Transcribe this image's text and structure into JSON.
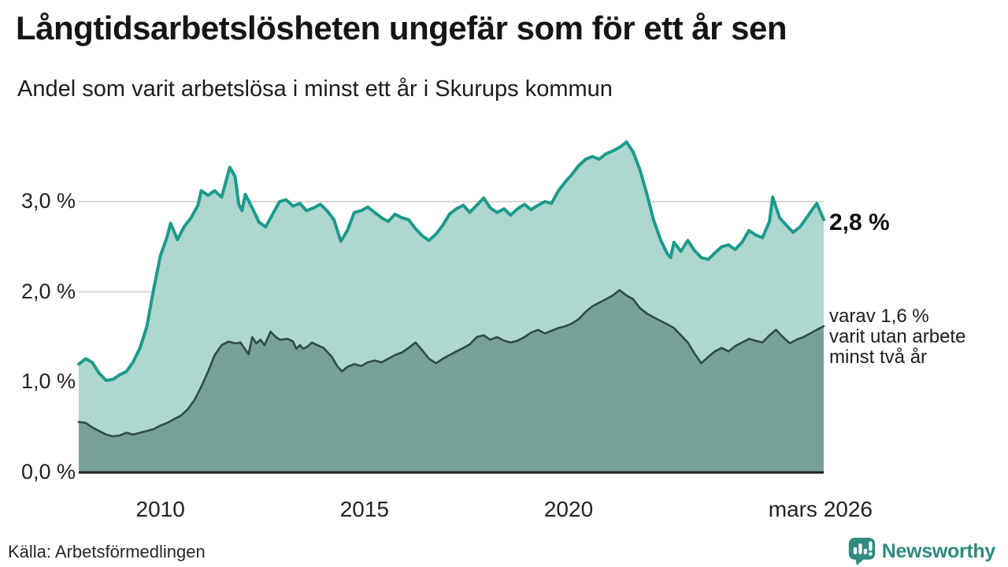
{
  "header": {
    "title": "Långtidsarbetslösheten ungefär som för ett år sen",
    "subtitle": "Andel som varit arbetslösa i minst ett år i Skurups kommun"
  },
  "footer": {
    "source": "Källa: Arbetsförmedlingen",
    "brand": "Newsworthy"
  },
  "colors": {
    "accent_teal": "#1d9a8b",
    "light_fill": "#aed7d0",
    "dark_fill": "#76a098",
    "dark_line": "#2e4b47",
    "grid": "#d8d8d8",
    "baseline": "#1f1f1f",
    "brand_teal": "#2f8a7f"
  },
  "chart_data": {
    "type": "area",
    "title": "Långtidsarbetslösheten ungefär som för ett år sen",
    "subtitle": "Andel som varit arbetslösa i minst ett år i Skurups kommun",
    "xlabel": "",
    "ylabel": "",
    "unit": "%",
    "x_domain": [
      2008.0,
      2026.25
    ],
    "ylim": [
      0,
      3.8
    ],
    "grid": "horizontal",
    "legend": "none",
    "annotations": {
      "latest": "2,8 %",
      "secondary": [
        "varav 1,6 %",
        "varit utan arbete",
        "minst två år"
      ]
    },
    "yticks": [
      {
        "value": 3,
        "label": "3,0 %"
      },
      {
        "value": 2,
        "label": "2,0 %"
      },
      {
        "value": 1,
        "label": "1,0 %"
      },
      {
        "value": 0,
        "label": "0,0 %"
      }
    ],
    "xticks": [
      {
        "t": 2010.0,
        "label": "2010"
      },
      {
        "t": 2015.0,
        "label": "2015"
      },
      {
        "t": 2020.0,
        "label": "2020"
      },
      {
        "t": 2026.17,
        "label": "mars 2026"
      }
    ],
    "series": [
      {
        "name": "Arbetslösa minst ett år",
        "color": "#1d9a8b",
        "fill": "#aed7d0",
        "latest_value": 2.8,
        "points": [
          [
            2008.0,
            1.2
          ],
          [
            2008.17,
            1.26
          ],
          [
            2008.33,
            1.22
          ],
          [
            2008.5,
            1.1
          ],
          [
            2008.67,
            1.02
          ],
          [
            2008.83,
            1.03
          ],
          [
            2009.0,
            1.08
          ],
          [
            2009.17,
            1.12
          ],
          [
            2009.33,
            1.22
          ],
          [
            2009.5,
            1.38
          ],
          [
            2009.67,
            1.62
          ],
          [
            2009.83,
            2.02
          ],
          [
            2010.0,
            2.4
          ],
          [
            2010.17,
            2.62
          ],
          [
            2010.25,
            2.76
          ],
          [
            2010.42,
            2.58
          ],
          [
            2010.58,
            2.72
          ],
          [
            2010.75,
            2.82
          ],
          [
            2010.92,
            2.96
          ],
          [
            2011.0,
            3.12
          ],
          [
            2011.17,
            3.07
          ],
          [
            2011.33,
            3.12
          ],
          [
            2011.5,
            3.05
          ],
          [
            2011.58,
            3.18
          ],
          [
            2011.7,
            3.38
          ],
          [
            2011.83,
            3.28
          ],
          [
            2011.92,
            2.97
          ],
          [
            2012.0,
            2.9
          ],
          [
            2012.08,
            3.08
          ],
          [
            2012.25,
            2.93
          ],
          [
            2012.42,
            2.77
          ],
          [
            2012.58,
            2.72
          ],
          [
            2012.75,
            2.86
          ],
          [
            2012.92,
            3.0
          ],
          [
            2013.08,
            3.02
          ],
          [
            2013.25,
            2.95
          ],
          [
            2013.42,
            2.98
          ],
          [
            2013.58,
            2.9
          ],
          [
            2013.75,
            2.93
          ],
          [
            2013.92,
            2.97
          ],
          [
            2014.08,
            2.9
          ],
          [
            2014.25,
            2.8
          ],
          [
            2014.42,
            2.56
          ],
          [
            2014.58,
            2.68
          ],
          [
            2014.75,
            2.88
          ],
          [
            2014.92,
            2.9
          ],
          [
            2015.08,
            2.94
          ],
          [
            2015.25,
            2.88
          ],
          [
            2015.42,
            2.82
          ],
          [
            2015.58,
            2.78
          ],
          [
            2015.75,
            2.86
          ],
          [
            2015.92,
            2.82
          ],
          [
            2016.08,
            2.8
          ],
          [
            2016.25,
            2.7
          ],
          [
            2016.42,
            2.62
          ],
          [
            2016.58,
            2.57
          ],
          [
            2016.75,
            2.64
          ],
          [
            2016.92,
            2.74
          ],
          [
            2017.08,
            2.86
          ],
          [
            2017.25,
            2.92
          ],
          [
            2017.42,
            2.96
          ],
          [
            2017.58,
            2.88
          ],
          [
            2017.75,
            2.96
          ],
          [
            2017.92,
            3.04
          ],
          [
            2018.08,
            2.93
          ],
          [
            2018.25,
            2.88
          ],
          [
            2018.42,
            2.92
          ],
          [
            2018.58,
            2.85
          ],
          [
            2018.75,
            2.92
          ],
          [
            2018.92,
            2.97
          ],
          [
            2019.08,
            2.91
          ],
          [
            2019.25,
            2.96
          ],
          [
            2019.42,
            3.0
          ],
          [
            2019.58,
            2.98
          ],
          [
            2019.75,
            3.12
          ],
          [
            2019.92,
            3.22
          ],
          [
            2020.08,
            3.3
          ],
          [
            2020.25,
            3.4
          ],
          [
            2020.42,
            3.47
          ],
          [
            2020.58,
            3.5
          ],
          [
            2020.75,
            3.47
          ],
          [
            2020.92,
            3.53
          ],
          [
            2021.08,
            3.56
          ],
          [
            2021.25,
            3.6
          ],
          [
            2021.42,
            3.66
          ],
          [
            2021.58,
            3.55
          ],
          [
            2021.75,
            3.35
          ],
          [
            2021.92,
            3.08
          ],
          [
            2022.08,
            2.8
          ],
          [
            2022.25,
            2.58
          ],
          [
            2022.42,
            2.42
          ],
          [
            2022.5,
            2.38
          ],
          [
            2022.58,
            2.55
          ],
          [
            2022.75,
            2.45
          ],
          [
            2022.92,
            2.57
          ],
          [
            2023.08,
            2.46
          ],
          [
            2023.25,
            2.38
          ],
          [
            2023.42,
            2.36
          ],
          [
            2023.58,
            2.43
          ],
          [
            2023.75,
            2.5
          ],
          [
            2023.92,
            2.52
          ],
          [
            2024.08,
            2.47
          ],
          [
            2024.25,
            2.55
          ],
          [
            2024.42,
            2.68
          ],
          [
            2024.58,
            2.63
          ],
          [
            2024.75,
            2.6
          ],
          [
            2024.92,
            2.78
          ],
          [
            2025.0,
            3.05
          ],
          [
            2025.17,
            2.82
          ],
          [
            2025.33,
            2.74
          ],
          [
            2025.5,
            2.66
          ],
          [
            2025.67,
            2.72
          ],
          [
            2025.83,
            2.82
          ],
          [
            2026.0,
            2.93
          ],
          [
            2026.08,
            2.98
          ],
          [
            2026.25,
            2.8
          ]
        ]
      },
      {
        "name": "Varav utan arbete minst två år",
        "color": "#2e4b47",
        "fill": "#76a098",
        "latest_value": 1.6,
        "points": [
          [
            2008.0,
            0.56
          ],
          [
            2008.17,
            0.55
          ],
          [
            2008.33,
            0.5
          ],
          [
            2008.5,
            0.46
          ],
          [
            2008.67,
            0.42
          ],
          [
            2008.83,
            0.4
          ],
          [
            2009.0,
            0.41
          ],
          [
            2009.17,
            0.44
          ],
          [
            2009.33,
            0.42
          ],
          [
            2009.5,
            0.44
          ],
          [
            2009.67,
            0.46
          ],
          [
            2009.83,
            0.48
          ],
          [
            2010.0,
            0.52
          ],
          [
            2010.17,
            0.55
          ],
          [
            2010.33,
            0.59
          ],
          [
            2010.5,
            0.63
          ],
          [
            2010.67,
            0.7
          ],
          [
            2010.83,
            0.8
          ],
          [
            2011.0,
            0.95
          ],
          [
            2011.17,
            1.12
          ],
          [
            2011.33,
            1.3
          ],
          [
            2011.5,
            1.41
          ],
          [
            2011.67,
            1.45
          ],
          [
            2011.83,
            1.43
          ],
          [
            2011.96,
            1.44
          ],
          [
            2012.16,
            1.31
          ],
          [
            2012.25,
            1.5
          ],
          [
            2012.35,
            1.43
          ],
          [
            2012.45,
            1.47
          ],
          [
            2012.55,
            1.41
          ],
          [
            2012.7,
            1.56
          ],
          [
            2012.83,
            1.5
          ],
          [
            2012.93,
            1.47
          ],
          [
            2013.12,
            1.48
          ],
          [
            2013.25,
            1.45
          ],
          [
            2013.33,
            1.37
          ],
          [
            2013.42,
            1.41
          ],
          [
            2013.5,
            1.37
          ],
          [
            2013.62,
            1.4
          ],
          [
            2013.71,
            1.44
          ],
          [
            2013.8,
            1.42
          ],
          [
            2014.0,
            1.38
          ],
          [
            2014.2,
            1.28
          ],
          [
            2014.33,
            1.18
          ],
          [
            2014.45,
            1.12
          ],
          [
            2014.58,
            1.17
          ],
          [
            2014.75,
            1.2
          ],
          [
            2014.92,
            1.18
          ],
          [
            2015.08,
            1.22
          ],
          [
            2015.25,
            1.24
          ],
          [
            2015.42,
            1.22
          ],
          [
            2015.58,
            1.26
          ],
          [
            2015.75,
            1.3
          ],
          [
            2015.92,
            1.33
          ],
          [
            2016.08,
            1.38
          ],
          [
            2016.25,
            1.44
          ],
          [
            2016.42,
            1.35
          ],
          [
            2016.58,
            1.26
          ],
          [
            2016.75,
            1.21
          ],
          [
            2016.92,
            1.26
          ],
          [
            2017.08,
            1.3
          ],
          [
            2017.25,
            1.34
          ],
          [
            2017.42,
            1.38
          ],
          [
            2017.58,
            1.42
          ],
          [
            2017.75,
            1.5
          ],
          [
            2017.92,
            1.52
          ],
          [
            2018.08,
            1.47
          ],
          [
            2018.25,
            1.5
          ],
          [
            2018.42,
            1.46
          ],
          [
            2018.58,
            1.44
          ],
          [
            2018.75,
            1.46
          ],
          [
            2018.92,
            1.5
          ],
          [
            2019.08,
            1.55
          ],
          [
            2019.25,
            1.58
          ],
          [
            2019.42,
            1.54
          ],
          [
            2019.58,
            1.57
          ],
          [
            2019.75,
            1.6
          ],
          [
            2019.92,
            1.62
          ],
          [
            2020.08,
            1.65
          ],
          [
            2020.25,
            1.7
          ],
          [
            2020.42,
            1.78
          ],
          [
            2020.58,
            1.84
          ],
          [
            2020.75,
            1.88
          ],
          [
            2020.92,
            1.92
          ],
          [
            2021.08,
            1.96
          ],
          [
            2021.25,
            2.02
          ],
          [
            2021.42,
            1.96
          ],
          [
            2021.58,
            1.92
          ],
          [
            2021.75,
            1.82
          ],
          [
            2021.92,
            1.76
          ],
          [
            2022.08,
            1.72
          ],
          [
            2022.25,
            1.68
          ],
          [
            2022.42,
            1.64
          ],
          [
            2022.58,
            1.6
          ],
          [
            2022.75,
            1.52
          ],
          [
            2022.92,
            1.44
          ],
          [
            2023.08,
            1.32
          ],
          [
            2023.25,
            1.21
          ],
          [
            2023.42,
            1.28
          ],
          [
            2023.58,
            1.34
          ],
          [
            2023.75,
            1.38
          ],
          [
            2023.92,
            1.34
          ],
          [
            2024.08,
            1.4
          ],
          [
            2024.25,
            1.44
          ],
          [
            2024.42,
            1.48
          ],
          [
            2024.58,
            1.46
          ],
          [
            2024.75,
            1.44
          ],
          [
            2024.92,
            1.52
          ],
          [
            2025.08,
            1.58
          ],
          [
            2025.25,
            1.5
          ],
          [
            2025.42,
            1.43
          ],
          [
            2025.58,
            1.47
          ],
          [
            2025.75,
            1.5
          ],
          [
            2025.92,
            1.54
          ],
          [
            2026.08,
            1.58
          ],
          [
            2026.25,
            1.62
          ]
        ]
      }
    ]
  }
}
